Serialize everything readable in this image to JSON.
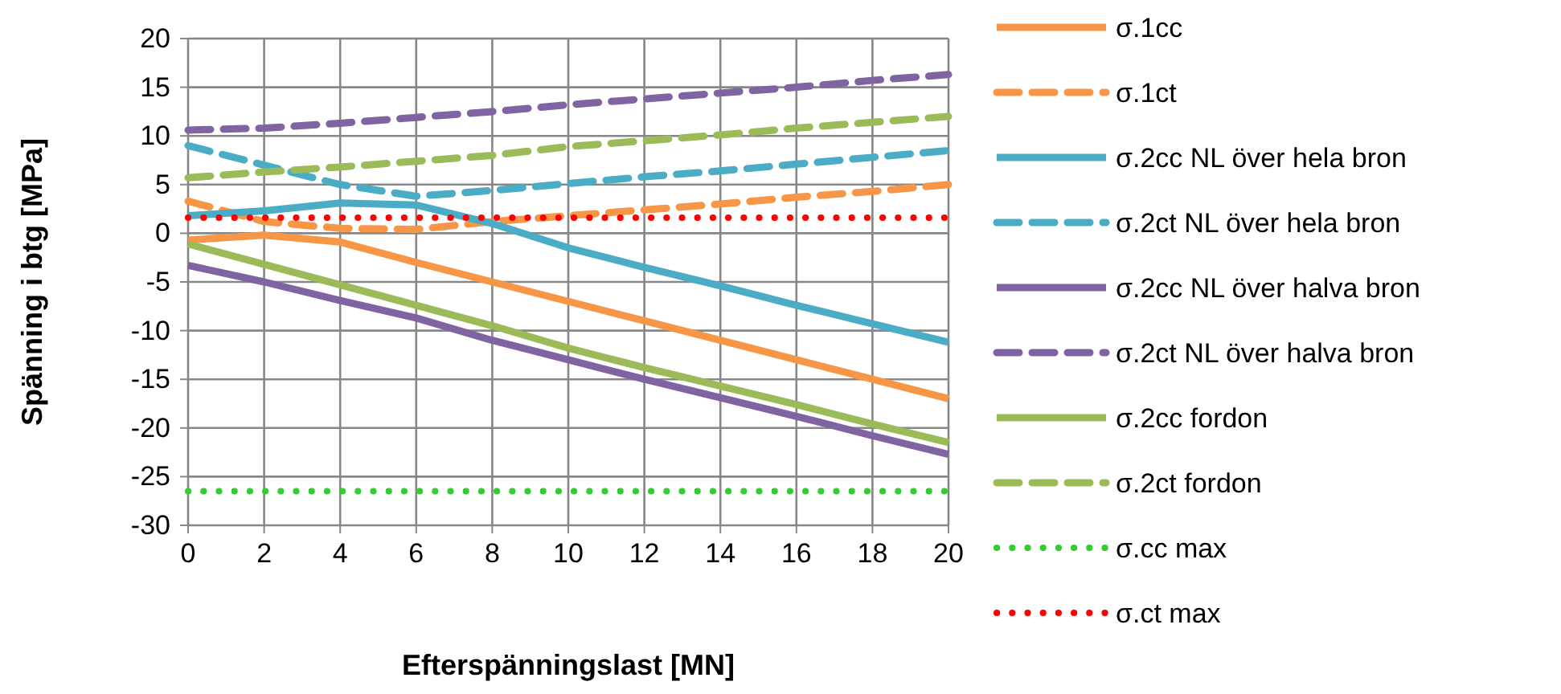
{
  "chart_data": {
    "type": "line",
    "xlabel": "Efterspänningslast [MN]",
    "ylabel": "Spänning i btg [MPa]",
    "x": [
      0,
      2,
      4,
      6,
      8,
      10,
      12,
      14,
      16,
      18,
      20
    ],
    "xlim": [
      0,
      20
    ],
    "xticks": [
      0,
      2,
      4,
      6,
      8,
      10,
      12,
      14,
      16,
      18,
      20
    ],
    "ylim": [
      -30,
      20
    ],
    "yticks": [
      -30,
      -25,
      -20,
      -15,
      -10,
      -5,
      0,
      5,
      10,
      15,
      20
    ],
    "grid": true,
    "legend": "right",
    "marker": "none",
    "series": [
      {
        "name": "σ.1cc",
        "color": "#f79646",
        "line_style": "solid",
        "values": [
          -0.7,
          -0.2,
          -0.9,
          -3,
          -5,
          -7,
          -9,
          -11,
          -13,
          -15,
          -17
        ]
      },
      {
        "name": "σ.1ct",
        "color": "#f79646",
        "line_style": "dashed",
        "values": [
          3.3,
          1.2,
          0.5,
          0.4,
          1.2,
          1.8,
          2.4,
          3.0,
          3.7,
          4.3,
          5.0
        ]
      },
      {
        "name": "σ.2cc NL över hela bron",
        "color": "#4bacc6",
        "line_style": "solid",
        "values": [
          1.8,
          2.3,
          3.1,
          2.9,
          1.0,
          -1.5,
          -3.5,
          -5.4,
          -7.4,
          -9.3,
          -11.2
        ]
      },
      {
        "name": "σ.2ct NL över hela bron",
        "color": "#4bacc6",
        "line_style": "dashed",
        "values": [
          9.0,
          7.0,
          5.0,
          3.8,
          4.4,
          5.1,
          5.8,
          6.4,
          7.1,
          7.8,
          8.5
        ]
      },
      {
        "name": "σ.2cc NL över halva bron",
        "color": "#8064a2",
        "line_style": "solid",
        "values": [
          -3.3,
          -5.0,
          -6.9,
          -8.7,
          -11.0,
          -13.0,
          -15.0,
          -16.9,
          -18.8,
          -20.8,
          -22.7
        ]
      },
      {
        "name": "σ.2ct NL över halva bron",
        "color": "#8064a2",
        "line_style": "dashed",
        "values": [
          10.6,
          10.8,
          11.3,
          11.9,
          12.5,
          13.2,
          13.8,
          14.4,
          15.0,
          15.7,
          16.3
        ]
      },
      {
        "name": "σ.2cc fordon",
        "color": "#9bbb59",
        "line_style": "solid",
        "values": [
          -1.1,
          -3.2,
          -5.3,
          -7.4,
          -9.5,
          -11.8,
          -13.8,
          -15.7,
          -17.6,
          -19.6,
          -21.5
        ]
      },
      {
        "name": "σ.2ct fordon",
        "color": "#9bbb59",
        "line_style": "dashed",
        "values": [
          5.7,
          6.3,
          6.8,
          7.4,
          8.0,
          8.9,
          9.5,
          10.1,
          10.8,
          11.4,
          12.0
        ]
      },
      {
        "name": "σ.cc max",
        "color": "#33cc33",
        "line_style": "dotted",
        "values": [
          -26.5,
          -26.5,
          -26.5,
          -26.5,
          -26.5,
          -26.5,
          -26.5,
          -26.5,
          -26.5,
          -26.5,
          -26.5
        ]
      },
      {
        "name": "σ.ct max",
        "color": "#ff0000",
        "line_style": "dotted",
        "values": [
          1.6,
          1.6,
          1.6,
          1.6,
          1.6,
          1.6,
          1.6,
          1.6,
          1.6,
          1.6,
          1.6
        ]
      }
    ]
  }
}
